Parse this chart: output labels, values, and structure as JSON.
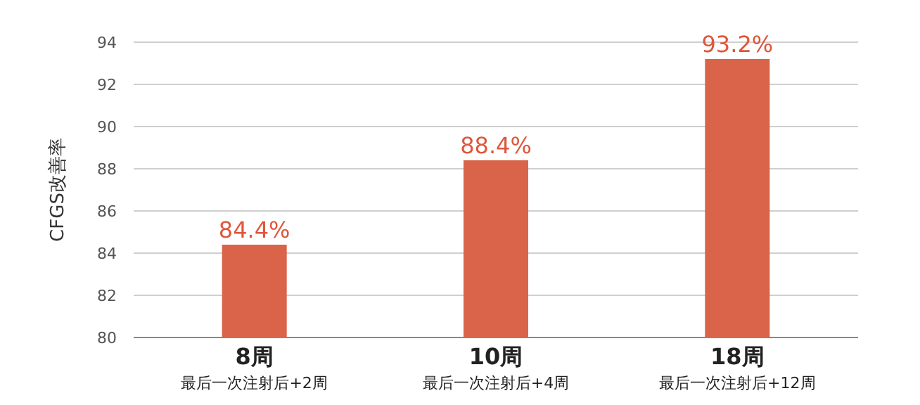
{
  "chart_data": {
    "type": "bar",
    "ylabel": "CFGS改善率",
    "categories": [
      "8周",
      "10周",
      "18周"
    ],
    "annotations": [
      "最后一次注射后+2周",
      "最后一次注射后+4周",
      "最后一次注射后+12周"
    ],
    "values": [
      84.4,
      88.4,
      93.2
    ],
    "value_labels": [
      "84.4%",
      "88.4%",
      "93.2%"
    ],
    "color": "#d9644a",
    "ylim": [
      80,
      94
    ],
    "yticks": [
      80,
      82,
      84,
      86,
      88,
      90,
      92,
      94
    ],
    "grid": "y"
  }
}
